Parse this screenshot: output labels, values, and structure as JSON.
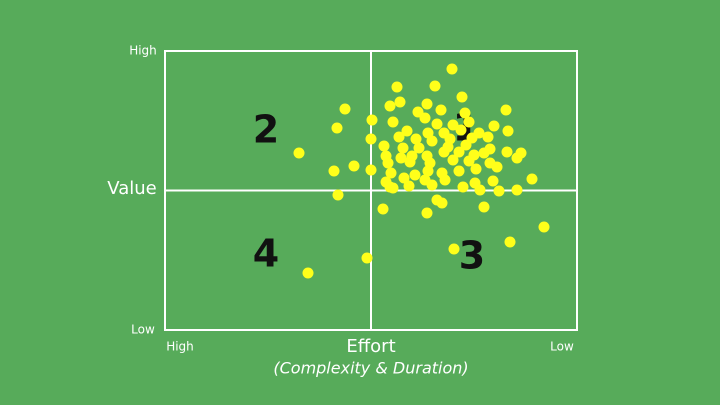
{
  "chart_data": {
    "type": "scatter",
    "y_label": "Value",
    "x_label": "Effort",
    "x_sublabel": "(Complexity & Duration)",
    "quadrant_labels": [
      "1",
      "2",
      "3",
      "4"
    ],
    "color": "#ffff1a",
    "grid": true,
    "xlim": [
      0,
      412
    ],
    "ylim": [
      0,
      279
    ],
    "xticks": [
      {
        "value": 0,
        "label": "High"
      },
      {
        "value": 412,
        "label": "Low"
      }
    ],
    "yticks": [
      {
        "value": 0,
        "label": "Low"
      },
      {
        "value": 279,
        "label": "High"
      }
    ],
    "x": [
      287,
      270,
      232,
      297,
      225,
      235,
      262,
      180,
      253,
      276,
      300,
      341,
      207,
      228,
      260,
      172,
      272,
      288,
      304,
      329,
      242,
      263,
      279,
      296,
      314,
      343,
      206,
      234,
      251,
      267,
      285,
      307,
      323,
      219,
      238,
      254,
      283,
      301,
      325,
      134,
      221,
      236,
      247,
      262,
      279,
      294,
      309,
      319,
      342,
      356,
      352,
      223,
      245,
      265,
      288,
      304,
      325,
      189,
      169,
      206,
      226,
      250,
      263,
      277,
      294,
      311,
      332,
      221,
      239,
      260,
      280,
      310,
      328,
      367,
      225,
      244,
      267,
      298,
      315,
      334,
      352,
      173,
      228,
      272,
      277,
      319,
      218,
      262,
      379,
      345,
      289,
      202,
      143
    ],
    "values": [
      261,
      244,
      243,
      233,
      224,
      228,
      226,
      221,
      218,
      220,
      217,
      220,
      210,
      208,
      212,
      202,
      206,
      205,
      208,
      204,
      199,
      197,
      197,
      200,
      197,
      199,
      191,
      193,
      191,
      189,
      191,
      192,
      193,
      184,
      182,
      182,
      183,
      185,
      181,
      177,
      174,
      172,
      174,
      174,
      178,
      178,
      175,
      177,
      178,
      177,
      172,
      167,
      168,
      167,
      170,
      169,
      167,
      164,
      159,
      160,
      157,
      155,
      159,
      157,
      159,
      161,
      163,
      148,
      152,
      150,
      150,
      147,
      149,
      151,
      143,
      144,
      145,
      143,
      140,
      139,
      140,
      135,
      142,
      130,
      127,
      123,
      121,
      117,
      103,
      88,
      81,
      72,
      57
    ]
  }
}
